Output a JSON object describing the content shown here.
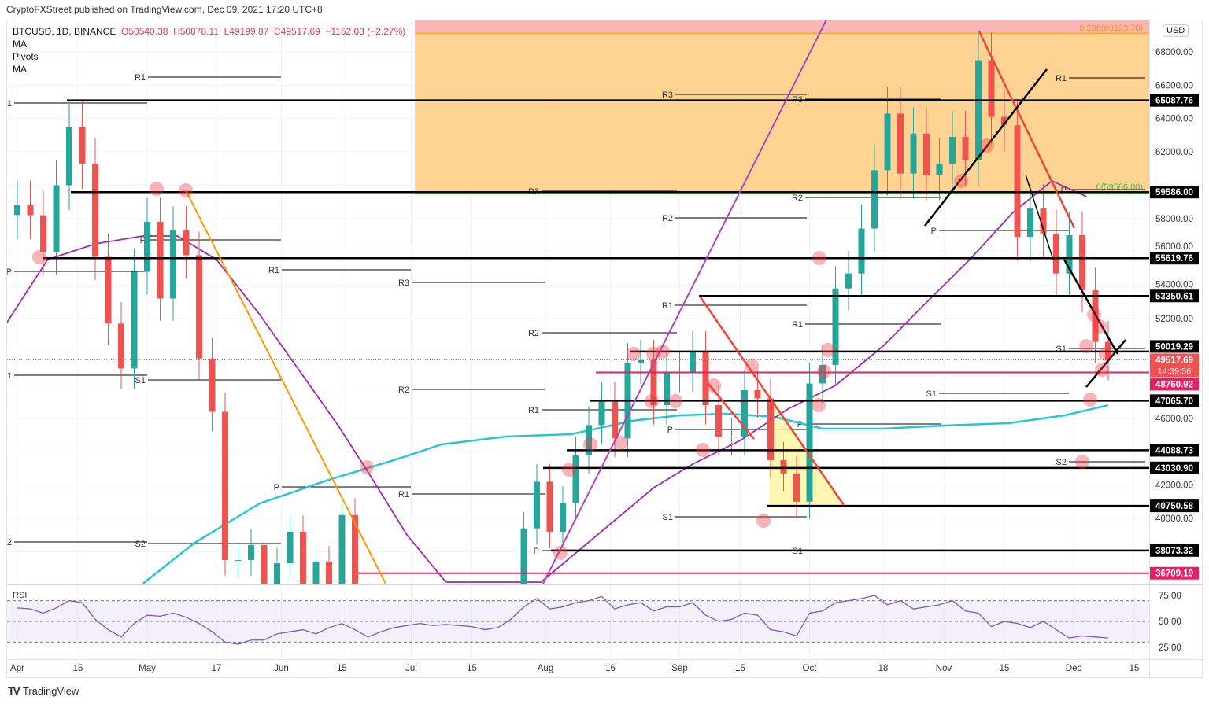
{
  "publisher_line": "CryptoFXStreet published on TradingView.com, Dec 09, 2021 17:20 UTC+8",
  "legend": {
    "symbol": "BTCUSD, 1D, BINANCE",
    "open": "O50540.38",
    "high": "H50878.11",
    "low": "L49199.87",
    "close": "C49517.69",
    "change": "−1152.03 (−2.27%)",
    "indicators": [
      "MA",
      "Pivots",
      "MA"
    ]
  },
  "currency_button": "USD",
  "footer_brand": "TradingView",
  "colors": {
    "up": "#26a69a",
    "down": "#ef5350",
    "ma50": "#9c27b0",
    "ma200": "#26c6da",
    "pink": "#e91e63",
    "fib_zone": "#ffcc80",
    "fib_top": "#f8b6b6"
  },
  "chart_data": {
    "type": "candlestick",
    "title": "BTCUSD, 1D, BINANCE",
    "ylim": [
      36100,
      69900
    ],
    "start_date": "2021-04-01",
    "step_days": 3,
    "close": [
      58800,
      58200,
      56000,
      60000,
      63500,
      61300,
      55700,
      51700,
      49000,
      54800,
      57800,
      53200,
      57300,
      55800,
      49600,
      46400,
      37500,
      37500,
      38400,
      35700,
      37300,
      39200,
      35800,
      37400,
      35500,
      40200,
      35800,
      31600,
      34700,
      34700,
      35000,
      34700,
      34200,
      33800,
      33100,
      31800,
      31800,
      32100,
      34200,
      39400,
      42200,
      39200,
      40900,
      43800,
      45600,
      47000,
      44800,
      49300,
      49500,
      46800,
      48800,
      48800,
      50000,
      46800,
      44900,
      44900,
      47700,
      47200,
      43500,
      42700,
      41000,
      48100,
      49200,
      53800,
      54700,
      57400,
      60900,
      64300,
      60700,
      63100,
      60600,
      61300,
      62900,
      61500,
      67500,
      64100,
      63600,
      56900,
      58600,
      57100,
      54700,
      57000,
      53700,
      50600,
      49517.69
    ],
    "ma50": [
      [
        "2021-03-29",
        51522
      ],
      [
        "2021-04-08",
        55535
      ],
      [
        "2021-04-19",
        56479
      ],
      [
        "2021-04-30",
        56951
      ],
      [
        "2021-05-08",
        56951
      ],
      [
        "2021-05-17",
        55535
      ],
      [
        "2021-05-27",
        52230
      ],
      [
        "2021-06-05",
        48925
      ],
      [
        "2021-06-14",
        45620
      ],
      [
        "2021-06-21",
        42787
      ],
      [
        "2021-06-30",
        39010
      ],
      [
        "2021-07-09",
        36177
      ],
      [
        "2021-07-31",
        36177
      ],
      [
        "2021-08-13",
        39010
      ],
      [
        "2021-08-26",
        41842
      ],
      [
        "2021-09-04",
        43259
      ],
      [
        "2021-09-15",
        44675
      ],
      [
        "2021-09-26",
        46564
      ],
      [
        "2021-10-07",
        47980
      ],
      [
        "2021-10-18",
        50341
      ],
      [
        "2021-10-27",
        52702
      ],
      [
        "2021-11-07",
        55535
      ],
      [
        "2021-11-17",
        58368
      ],
      [
        "2021-11-26",
        60257
      ],
      [
        "2021-12-04",
        59313
      ]
    ],
    "ma200": [
      [
        "2021-04-30",
        36082
      ],
      [
        "2021-05-12",
        38537
      ],
      [
        "2021-05-27",
        40898
      ],
      [
        "2021-06-12",
        42315
      ],
      [
        "2021-06-27",
        43495
      ],
      [
        "2021-07-08",
        44439
      ],
      [
        "2021-07-23",
        44911
      ],
      [
        "2021-08-07",
        45053
      ],
      [
        "2021-08-21",
        45856
      ],
      [
        "2021-09-01",
        46187
      ],
      [
        "2021-09-12",
        46281
      ],
      [
        "2021-09-23",
        46092
      ],
      [
        "2021-10-04",
        45384
      ],
      [
        "2021-10-18",
        45384
      ],
      [
        "2021-11-01",
        45573
      ],
      [
        "2021-11-16",
        45714
      ],
      [
        "2021-11-29",
        46187
      ],
      [
        "2021-12-09",
        46800
      ]
    ],
    "levels": [
      {
        "price": 65087.76,
        "label": "65087.76",
        "kind": "black"
      },
      {
        "price": 59586.0,
        "label": "59586.00",
        "kind": "black"
      },
      {
        "price": 55619.76,
        "label": "55619.76",
        "kind": "black"
      },
      {
        "price": 53350.61,
        "label": "53350.61",
        "kind": "black"
      },
      {
        "price": 50019.29,
        "label": "50019.29",
        "kind": "black"
      },
      {
        "price": 48760.92,
        "label": "48760.92",
        "kind": "pink"
      },
      {
        "price": 47065.7,
        "label": "47065.70",
        "kind": "black"
      },
      {
        "price": 44088.73,
        "label": "44088.73",
        "kind": "black"
      },
      {
        "price": 43030.9,
        "label": "43030.90",
        "kind": "black"
      },
      {
        "price": 40750.58,
        "label": "40750.58",
        "kind": "black"
      },
      {
        "price": 38073.32,
        "label": "38073.32",
        "kind": "black"
      },
      {
        "price": 36709.19,
        "label": "36709.19",
        "kind": "pink"
      }
    ],
    "current_price": {
      "price": 49517.69,
      "label": "49517.69",
      "countdown": "14:39:56"
    },
    "fib": {
      "top_label": "0.236(69123.70)",
      "top_price": 69123.7,
      "bottom_label": "0(59586.00)",
      "bottom_price": 59586.0
    },
    "pivots": [
      {
        "label": "R1",
        "price": 66489
      },
      {
        "label": "R1",
        "price": 64931
      },
      {
        "label": "P",
        "price": 56716
      },
      {
        "label": "P",
        "price": 54827
      },
      {
        "label": "S1",
        "price": 48595
      },
      {
        "label": "S1",
        "price": 48311
      },
      {
        "label": "S2",
        "price": 38585
      },
      {
        "label": "S2",
        "price": 38490
      },
      {
        "label": "R1",
        "price": 54921
      },
      {
        "label": "R3",
        "price": 54166
      },
      {
        "label": "R2",
        "price": 51144
      },
      {
        "label": "R2",
        "price": 47745
      },
      {
        "label": "R1",
        "price": 46517
      },
      {
        "label": "R1",
        "price": 41465
      },
      {
        "label": "P",
        "price": 41890
      },
      {
        "label": "P",
        "price": 45337
      },
      {
        "label": "P",
        "price": 38066
      },
      {
        "label": "S1",
        "price": 40096
      },
      {
        "label": "R1",
        "price": 52797
      },
      {
        "label": "R3",
        "price": 65450
      },
      {
        "label": "R2",
        "price": 58038
      },
      {
        "label": "R3",
        "price": 59643
      },
      {
        "label": "R3",
        "price": 65167
      },
      {
        "label": "R2",
        "price": 59265
      },
      {
        "label": "R1",
        "price": 51663
      },
      {
        "label": "P",
        "price": 45667
      },
      {
        "label": "S1",
        "price": 38066
      },
      {
        "label": "P",
        "price": 57283
      },
      {
        "label": "S1",
        "price": 47509
      },
      {
        "label": "R1",
        "price": 66442
      },
      {
        "label": "P",
        "price": 59737
      },
      {
        "label": "S1",
        "price": 50200
      },
      {
        "label": "S2",
        "price": 43401
      }
    ],
    "price_ticks": [
      "68000.00",
      "66000.00",
      "64000.00",
      "62000.00",
      "58000.00",
      "56000.00",
      "54000.00",
      "52000.00",
      "46000.00",
      "42000.00",
      "40000.00"
    ],
    "x_ticks": [
      {
        "label": "Apr",
        "date": "2021-04-01"
      },
      {
        "label": "15",
        "date": "2021-04-15"
      },
      {
        "label": "May",
        "date": "2021-05-01"
      },
      {
        "label": "17",
        "date": "2021-05-17"
      },
      {
        "label": "Jun",
        "date": "2021-06-01"
      },
      {
        "label": "15",
        "date": "2021-06-15"
      },
      {
        "label": "Jul",
        "date": "2021-07-01"
      },
      {
        "label": "15",
        "date": "2021-07-15"
      },
      {
        "label": "Aug",
        "date": "2021-08-01"
      },
      {
        "label": "16",
        "date": "2021-08-16"
      },
      {
        "label": "Sep",
        "date": "2021-09-01"
      },
      {
        "label": "15",
        "date": "2021-09-15"
      },
      {
        "label": "Oct",
        "date": "2021-10-01"
      },
      {
        "label": "18",
        "date": "2021-10-18"
      },
      {
        "label": "Nov",
        "date": "2021-11-01"
      },
      {
        "label": "15",
        "date": "2021-11-15"
      },
      {
        "label": "Dec",
        "date": "2021-12-01"
      },
      {
        "label": "15",
        "date": "2021-12-15"
      }
    ],
    "rsi": {
      "label": "RSI",
      "ticks": [
        "75.00",
        "50.00",
        "25.00"
      ],
      "levels": [
        70,
        50,
        30
      ],
      "values": [
        63,
        62,
        58,
        63,
        70,
        68,
        52,
        42,
        35,
        48,
        56,
        55,
        58,
        54,
        48,
        40,
        30,
        28,
        32,
        32,
        38,
        40,
        42,
        38,
        44,
        48,
        42,
        35,
        40,
        44,
        46,
        48,
        46,
        47,
        46,
        45,
        42,
        44,
        52,
        64,
        72,
        62,
        64,
        68,
        70,
        74,
        62,
        66,
        68,
        60,
        64,
        64,
        68,
        56,
        50,
        52,
        58,
        56,
        42,
        40,
        36,
        58,
        60,
        68,
        70,
        72,
        75,
        66,
        70,
        62,
        64,
        66,
        70,
        60,
        58,
        45,
        50,
        48,
        44,
        50,
        42,
        34,
        36,
        35,
        34
      ]
    }
  }
}
